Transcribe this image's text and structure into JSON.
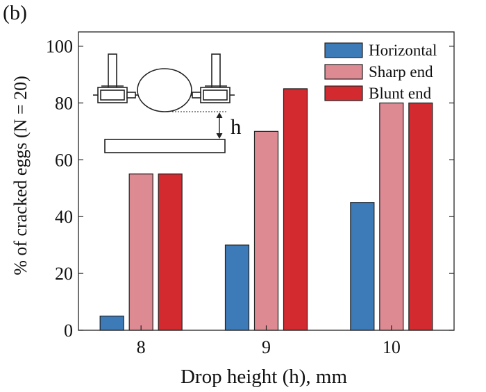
{
  "panel_label": "(b)",
  "chart_data": {
    "type": "bar",
    "xlabel": "Drop height (h), mm",
    "ylabel": "% of cracked eggs (N = 20)",
    "ylim": [
      0,
      105
    ],
    "yticks": [
      0,
      20,
      40,
      60,
      80,
      100
    ],
    "categories": [
      "8",
      "9",
      "10"
    ],
    "series": [
      {
        "name": "Horizontal",
        "values": [
          5,
          30,
          45
        ],
        "color": "#3d7ab8"
      },
      {
        "name": "Sharp end",
        "values": [
          55,
          70,
          80
        ],
        "color": "#de8a93"
      },
      {
        "name": "Blunt end",
        "values": [
          55,
          85,
          80
        ],
        "color": "#d32a2f"
      }
    ],
    "legend_position": "top-right",
    "grid": false
  },
  "inset": {
    "height_label": "h"
  }
}
